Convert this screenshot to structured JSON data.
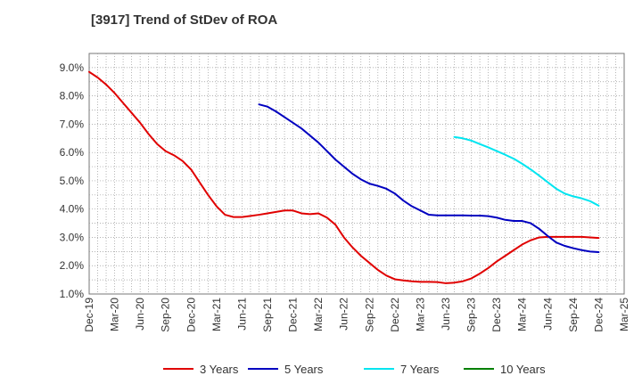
{
  "chart_data": {
    "type": "line",
    "title": "[3917]  Trend of StDev of ROA",
    "xlabel": "",
    "ylabel": "",
    "x_ticks": [
      "Dec-19",
      "Mar-20",
      "Jun-20",
      "Sep-20",
      "Dec-20",
      "Mar-21",
      "Jun-21",
      "Sep-21",
      "Dec-21",
      "Mar-22",
      "Jun-22",
      "Sep-22",
      "Dec-22",
      "Mar-23",
      "Jun-23",
      "Sep-23",
      "Dec-23",
      "Mar-24",
      "Jun-24",
      "Sep-24",
      "Dec-24",
      "Mar-25"
    ],
    "y_ticks": [
      "1.0%",
      "2.0%",
      "3.0%",
      "4.0%",
      "5.0%",
      "6.0%",
      "7.0%",
      "8.0%",
      "9.0%"
    ],
    "ylim": [
      1.0,
      9.5
    ],
    "grid": true,
    "legend_position": "bottom",
    "series": [
      {
        "name": "3 Years",
        "color": "#e00000",
        "points": [
          [
            "Dec-19",
            8.85
          ],
          [
            "Jan-20",
            8.65
          ],
          [
            "Feb-20",
            8.4
          ],
          [
            "Mar-20",
            8.1
          ],
          [
            "Apr-20",
            7.75
          ],
          [
            "May-20",
            7.4
          ],
          [
            "Jun-20",
            7.05
          ],
          [
            "Jul-20",
            6.65
          ],
          [
            "Aug-20",
            6.3
          ],
          [
            "Sep-20",
            6.05
          ],
          [
            "Oct-20",
            5.9
          ],
          [
            "Nov-20",
            5.7
          ],
          [
            "Dec-20",
            5.4
          ],
          [
            "Jan-21",
            4.95
          ],
          [
            "Feb-21",
            4.5
          ],
          [
            "Mar-21",
            4.1
          ],
          [
            "Apr-21",
            3.8
          ],
          [
            "May-21",
            3.72
          ],
          [
            "Jun-21",
            3.72
          ],
          [
            "Jul-21",
            3.76
          ],
          [
            "Aug-21",
            3.8
          ],
          [
            "Sep-21",
            3.85
          ],
          [
            "Oct-21",
            3.9
          ],
          [
            "Nov-21",
            3.95
          ],
          [
            "Dec-21",
            3.95
          ],
          [
            "Jan-22",
            3.85
          ],
          [
            "Feb-22",
            3.82
          ],
          [
            "Mar-22",
            3.85
          ],
          [
            "Apr-22",
            3.7
          ],
          [
            "May-22",
            3.45
          ],
          [
            "Jun-22",
            3.0
          ],
          [
            "Jul-22",
            2.65
          ],
          [
            "Aug-22",
            2.35
          ],
          [
            "Sep-22",
            2.1
          ],
          [
            "Oct-22",
            1.85
          ],
          [
            "Nov-22",
            1.65
          ],
          [
            "Dec-22",
            1.52
          ],
          [
            "Jan-23",
            1.48
          ],
          [
            "Feb-23",
            1.45
          ],
          [
            "Mar-23",
            1.43
          ],
          [
            "Apr-23",
            1.43
          ],
          [
            "May-23",
            1.42
          ],
          [
            "Jun-23",
            1.38
          ],
          [
            "Jul-23",
            1.4
          ],
          [
            "Aug-23",
            1.45
          ],
          [
            "Sep-23",
            1.55
          ],
          [
            "Oct-23",
            1.72
          ],
          [
            "Nov-23",
            1.92
          ],
          [
            "Dec-23",
            2.15
          ],
          [
            "Jan-24",
            2.35
          ],
          [
            "Feb-24",
            2.55
          ],
          [
            "Mar-24",
            2.75
          ],
          [
            "Apr-24",
            2.9
          ],
          [
            "May-24",
            3.0
          ],
          [
            "Jun-24",
            3.02
          ],
          [
            "Jul-24",
            3.02
          ],
          [
            "Aug-24",
            3.02
          ],
          [
            "Sep-24",
            3.02
          ],
          [
            "Oct-24",
            3.02
          ],
          [
            "Nov-24",
            3.0
          ],
          [
            "Dec-24",
            2.98
          ]
        ]
      },
      {
        "name": "5 Years",
        "color": "#0000c0",
        "points": [
          [
            "Aug-21",
            7.7
          ],
          [
            "Sep-21",
            7.62
          ],
          [
            "Oct-21",
            7.45
          ],
          [
            "Nov-21",
            7.25
          ],
          [
            "Dec-21",
            7.05
          ],
          [
            "Jan-22",
            6.85
          ],
          [
            "Feb-22",
            6.6
          ],
          [
            "Mar-22",
            6.35
          ],
          [
            "Apr-22",
            6.05
          ],
          [
            "May-22",
            5.75
          ],
          [
            "Jun-22",
            5.5
          ],
          [
            "Jul-22",
            5.25
          ],
          [
            "Aug-22",
            5.05
          ],
          [
            "Sep-22",
            4.9
          ],
          [
            "Oct-22",
            4.82
          ],
          [
            "Nov-22",
            4.72
          ],
          [
            "Dec-22",
            4.55
          ],
          [
            "Jan-23",
            4.3
          ],
          [
            "Feb-23",
            4.1
          ],
          [
            "Mar-23",
            3.95
          ],
          [
            "Apr-23",
            3.8
          ],
          [
            "May-23",
            3.78
          ],
          [
            "Jun-23",
            3.78
          ],
          [
            "Jul-23",
            3.78
          ],
          [
            "Aug-23",
            3.78
          ],
          [
            "Sep-23",
            3.77
          ],
          [
            "Oct-23",
            3.77
          ],
          [
            "Nov-23",
            3.75
          ],
          [
            "Dec-23",
            3.7
          ],
          [
            "Jan-24",
            3.62
          ],
          [
            "Feb-24",
            3.58
          ],
          [
            "Mar-24",
            3.58
          ],
          [
            "Apr-24",
            3.5
          ],
          [
            "May-24",
            3.3
          ],
          [
            "Jun-24",
            3.05
          ],
          [
            "Jul-24",
            2.82
          ],
          [
            "Aug-24",
            2.7
          ],
          [
            "Sep-24",
            2.62
          ],
          [
            "Oct-24",
            2.55
          ],
          [
            "Nov-24",
            2.5
          ],
          [
            "Dec-24",
            2.48
          ]
        ]
      },
      {
        "name": "7 Years",
        "color": "#00e5f0",
        "points": [
          [
            "Jul-23",
            6.55
          ],
          [
            "Aug-23",
            6.5
          ],
          [
            "Sep-23",
            6.42
          ],
          [
            "Oct-23",
            6.3
          ],
          [
            "Nov-23",
            6.18
          ],
          [
            "Dec-23",
            6.05
          ],
          [
            "Jan-24",
            5.92
          ],
          [
            "Feb-24",
            5.78
          ],
          [
            "Mar-24",
            5.6
          ],
          [
            "Apr-24",
            5.4
          ],
          [
            "May-24",
            5.18
          ],
          [
            "Jun-24",
            4.95
          ],
          [
            "Jul-24",
            4.72
          ],
          [
            "Aug-24",
            4.55
          ],
          [
            "Sep-24",
            4.45
          ],
          [
            "Oct-24",
            4.38
          ],
          [
            "Nov-24",
            4.28
          ],
          [
            "Dec-24",
            4.12
          ]
        ]
      },
      {
        "name": "10 Years",
        "color": "#008000",
        "points": []
      }
    ]
  }
}
